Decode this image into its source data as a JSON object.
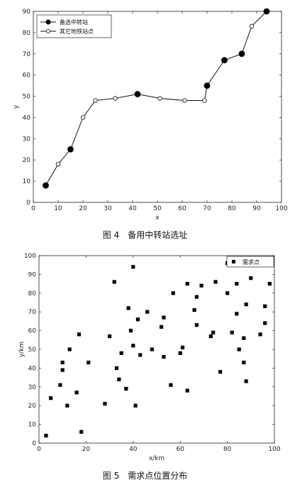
{
  "captions": {
    "fig4": "图 4　备用中转站选址",
    "fig5": "图 5　需求点位置分布"
  },
  "chart_data": [
    {
      "type": "line",
      "title": "",
      "xlabel": "x",
      "ylabel": "y",
      "xlim": [
        0,
        100
      ],
      "ylim": [
        0,
        90
      ],
      "xticks": [
        0,
        10,
        20,
        30,
        40,
        50,
        60,
        70,
        80,
        90,
        100
      ],
      "yticks": [
        0,
        10,
        20,
        30,
        40,
        50,
        60,
        70,
        80,
        90
      ],
      "grid": false,
      "legend_position": "top-left",
      "path": {
        "x": [
          5,
          10,
          15,
          20,
          25,
          33,
          42,
          51,
          61,
          69,
          70,
          77,
          84,
          88,
          94
        ],
        "y": [
          8,
          18,
          25,
          40,
          48,
          49,
          51,
          49,
          48,
          48,
          55,
          67,
          70,
          83,
          90
        ]
      },
      "series": [
        {
          "name": "备选中转站",
          "marker": "filled-circle",
          "x": [
            5,
            15,
            42,
            70,
            77,
            84,
            94
          ],
          "y": [
            8,
            25,
            51,
            55,
            67,
            70,
            90
          ]
        },
        {
          "name": "其它地铁站点",
          "marker": "open-circle",
          "x": [
            10,
            20,
            25,
            33,
            51,
            61,
            69,
            88
          ],
          "y": [
            18,
            40,
            48,
            49,
            49,
            48,
            48,
            83
          ]
        }
      ]
    },
    {
      "type": "scatter",
      "title": "",
      "xlabel": "x/km",
      "ylabel": "y/km",
      "xlim": [
        0,
        100
      ],
      "ylim": [
        0,
        100
      ],
      "xticks": [
        0,
        20,
        40,
        60,
        80,
        100
      ],
      "yticks": [
        0,
        10,
        20,
        30,
        40,
        50,
        60,
        70,
        80,
        90,
        100
      ],
      "grid": false,
      "legend_position": "top-right",
      "series": [
        {
          "name": "需求点",
          "marker": "square",
          "x": [
            3,
            5,
            9,
            10,
            10,
            12,
            13,
            16,
            17,
            18,
            21,
            28,
            30,
            32,
            33,
            34,
            35,
            37,
            38,
            39,
            40,
            40,
            41,
            42,
            43,
            46,
            48,
            52,
            53,
            53,
            56,
            57,
            60,
            61,
            63,
            63,
            66,
            67,
            67,
            69,
            73,
            74,
            75,
            77,
            80,
            80,
            82,
            84,
            84,
            85,
            87,
            87,
            88,
            88,
            90,
            94,
            96,
            96,
            98
          ],
          "y": [
            4,
            24,
            31,
            39,
            43,
            20,
            50,
            27,
            58,
            6,
            43,
            21,
            57,
            86,
            40,
            34,
            48,
            29,
            72,
            60,
            94,
            52,
            20,
            66,
            47,
            70,
            50,
            62,
            67,
            46,
            31,
            80,
            48,
            51,
            85,
            28,
            71,
            63,
            78,
            84,
            57,
            59,
            86,
            38,
            96,
            80,
            59,
            69,
            85,
            50,
            43,
            56,
            74,
            33,
            88,
            58,
            73,
            64,
            85
          ]
        }
      ]
    }
  ]
}
